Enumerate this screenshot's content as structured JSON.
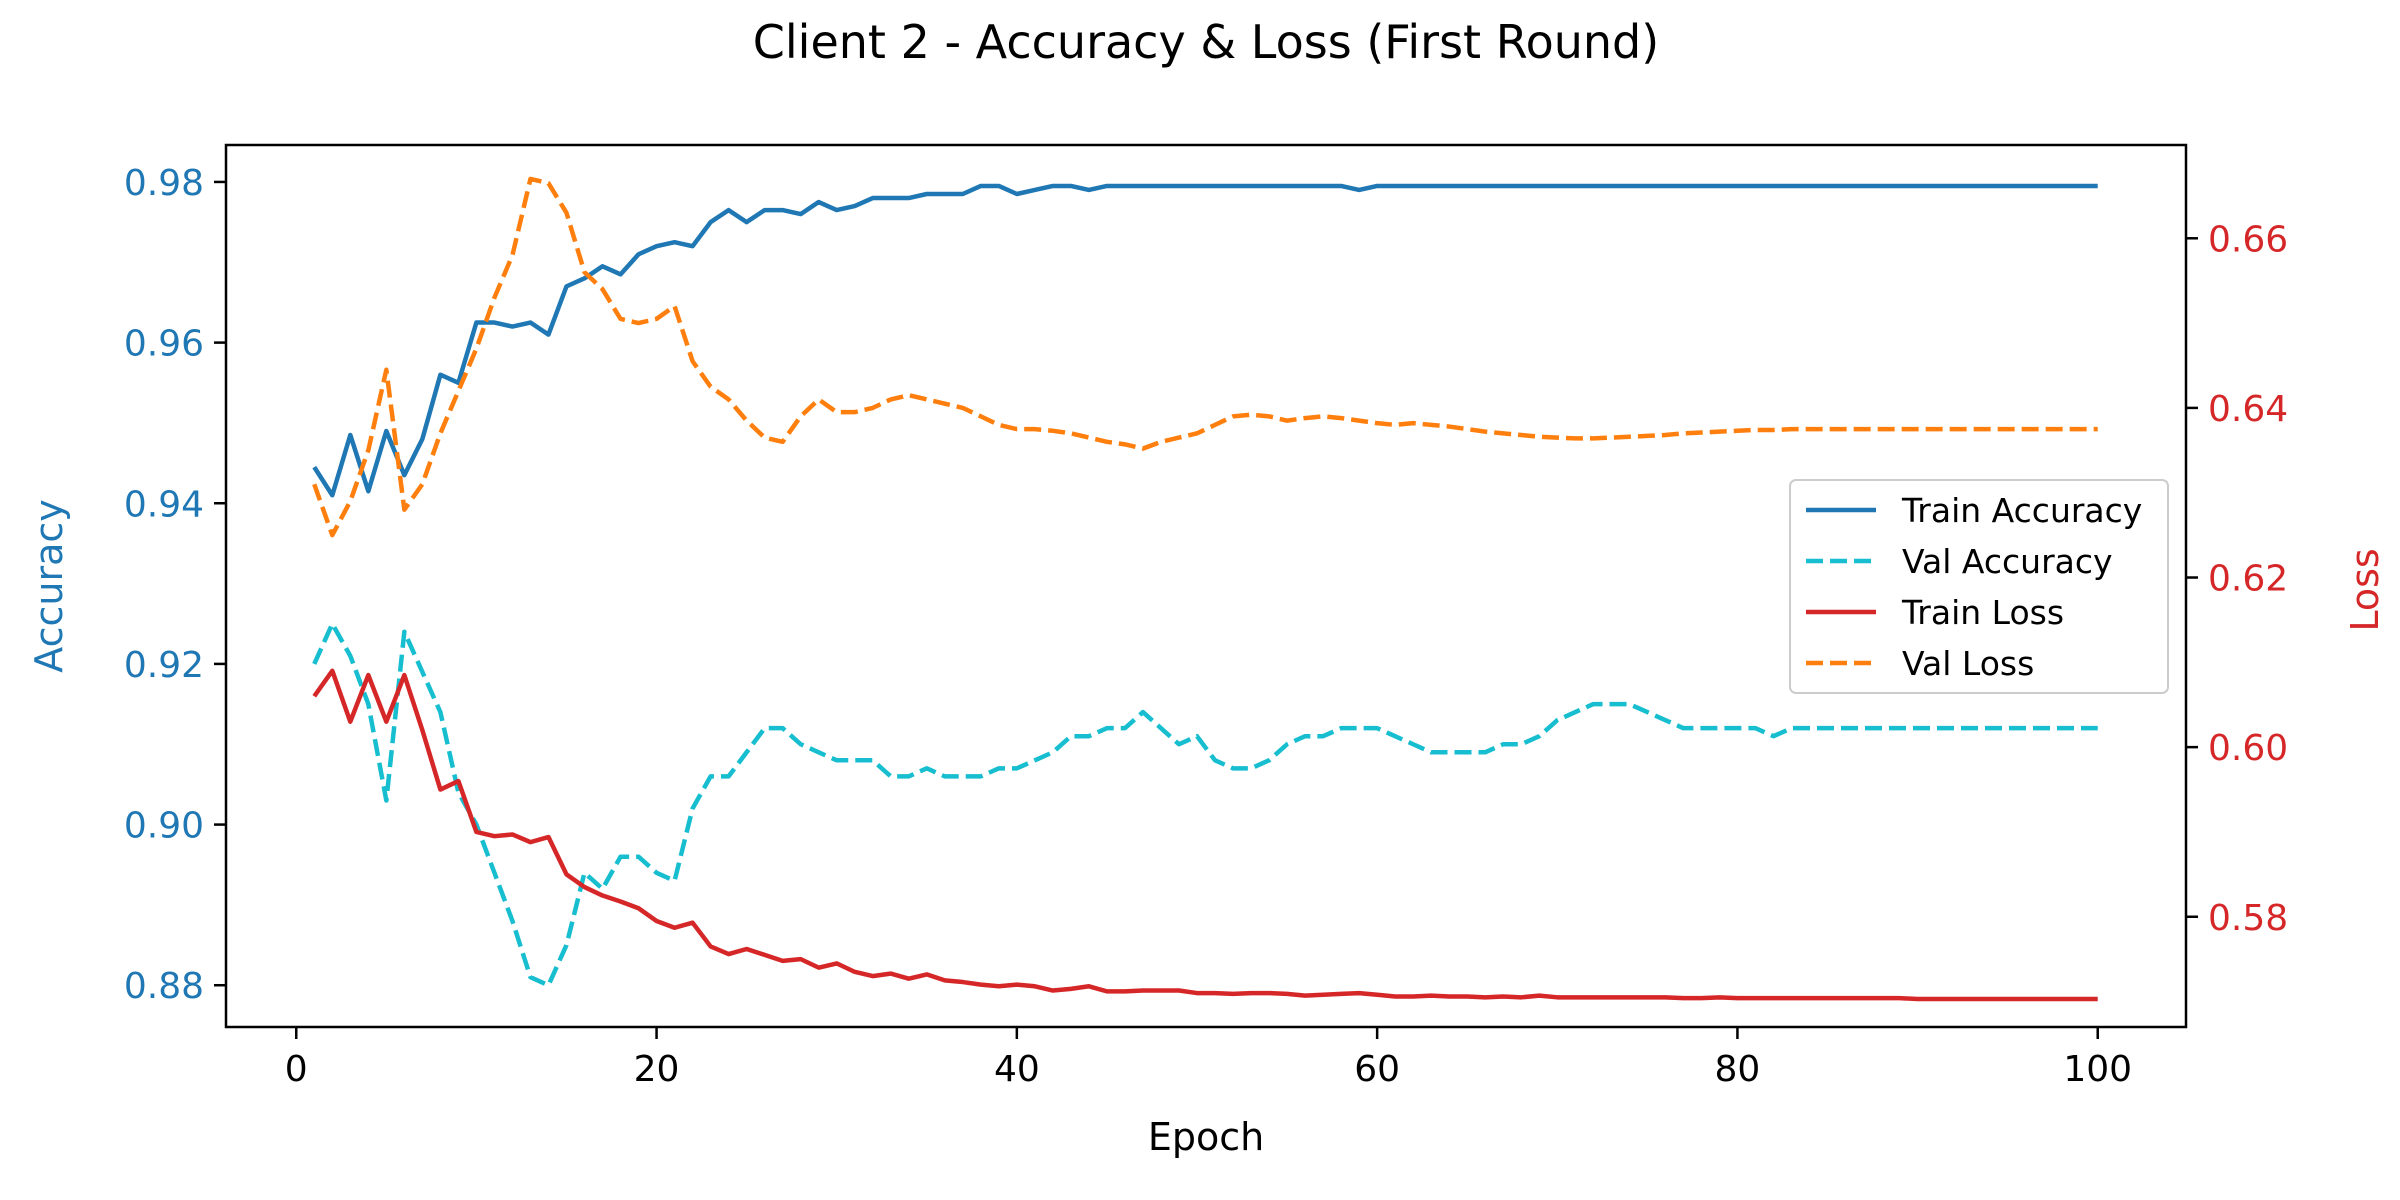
{
  "chart_data": {
    "type": "line",
    "title": "Client 2 - Accuracy & Loss (First Round)",
    "xlabel": "Epoch",
    "ylabel_left": "Accuracy",
    "ylabel_right": "Loss",
    "xlim": [
      -3.9,
      104.9
    ],
    "ylim_left": [
      0.8748,
      0.9846
    ],
    "ylim_right": [
      0.567,
      0.671
    ],
    "xticks": [
      0,
      20,
      40,
      60,
      80,
      100
    ],
    "xtick_labels": [
      "0",
      "20",
      "40",
      "60",
      "80",
      "100"
    ],
    "yticks_left": [
      0.88,
      0.9,
      0.92,
      0.94,
      0.96,
      0.98
    ],
    "ytick_labels_left": [
      "0.88",
      "0.90",
      "0.92",
      "0.94",
      "0.96",
      "0.98"
    ],
    "yticks_right": [
      0.58,
      0.6,
      0.62,
      0.64,
      0.66
    ],
    "ytick_labels_right": [
      "0.58",
      "0.60",
      "0.62",
      "0.64",
      "0.66"
    ],
    "left_color": "#1f77b4",
    "right_color": "#d62728",
    "grid": false,
    "legend_position": "center-right",
    "series": [
      {
        "name": "Train Accuracy",
        "axis": "left",
        "color": "#1f77b4",
        "dash": "solid",
        "values": [
          0.9445,
          0.941,
          0.9485,
          0.9415,
          0.949,
          0.9435,
          0.948,
          0.956,
          0.955,
          0.9625,
          0.9625,
          0.962,
          0.9625,
          0.961,
          0.967,
          0.968,
          0.9695,
          0.9685,
          0.971,
          0.972,
          0.9725,
          0.972,
          0.975,
          0.9765,
          0.975,
          0.9765,
          0.9765,
          0.976,
          0.9775,
          0.9765,
          0.977,
          0.978,
          0.978,
          0.978,
          0.9785,
          0.9785,
          0.9785,
          0.9795,
          0.9795,
          0.9785,
          0.979,
          0.9795,
          0.9795,
          0.979,
          0.9795,
          0.9795,
          0.9795,
          0.9795,
          0.9795,
          0.9795,
          0.9795,
          0.9795,
          0.9795,
          0.9795,
          0.9795,
          0.9795,
          0.9795,
          0.9795,
          0.979,
          0.9795,
          0.9795,
          0.9795,
          0.9795,
          0.9795,
          0.9795,
          0.9795,
          0.9795,
          0.9795,
          0.9795,
          0.9795,
          0.9795,
          0.9795,
          0.9795,
          0.9795,
          0.9795,
          0.9795,
          0.9795,
          0.9795,
          0.9795,
          0.9795,
          0.9795,
          0.9795,
          0.9795,
          0.9795,
          0.9795,
          0.9795,
          0.9795,
          0.9795,
          0.9795,
          0.9795,
          0.9795,
          0.9795,
          0.9795,
          0.9795,
          0.9795,
          0.9795,
          0.9795,
          0.9795,
          0.9795,
          0.9795
        ]
      },
      {
        "name": "Val Accuracy",
        "axis": "left",
        "color": "#17becf",
        "dash": "dashed",
        "values": [
          0.92,
          0.925,
          0.921,
          0.915,
          0.903,
          0.924,
          0.919,
          0.914,
          0.904,
          0.9,
          0.894,
          0.888,
          0.881,
          0.88,
          0.885,
          0.894,
          0.892,
          0.896,
          0.896,
          0.894,
          0.893,
          0.902,
          0.906,
          0.906,
          0.909,
          0.912,
          0.912,
          0.91,
          0.909,
          0.908,
          0.908,
          0.908,
          0.906,
          0.906,
          0.907,
          0.906,
          0.906,
          0.906,
          0.907,
          0.907,
          0.908,
          0.909,
          0.911,
          0.911,
          0.912,
          0.912,
          0.914,
          0.912,
          0.91,
          0.911,
          0.908,
          0.907,
          0.907,
          0.908,
          0.91,
          0.911,
          0.911,
          0.912,
          0.912,
          0.912,
          0.911,
          0.91,
          0.909,
          0.909,
          0.909,
          0.909,
          0.91,
          0.91,
          0.911,
          0.913,
          0.914,
          0.915,
          0.915,
          0.915,
          0.914,
          0.913,
          0.912,
          0.912,
          0.912,
          0.912,
          0.912,
          0.911,
          0.912,
          0.912,
          0.912,
          0.912,
          0.912,
          0.912,
          0.912,
          0.912,
          0.912,
          0.912,
          0.912,
          0.912,
          0.912,
          0.912,
          0.912,
          0.912,
          0.912,
          0.912
        ]
      },
      {
        "name": "Train Loss",
        "axis": "right",
        "color": "#d62728",
        "dash": "solid",
        "values": [
          0.606,
          0.609,
          0.603,
          0.6085,
          0.603,
          0.6085,
          0.602,
          0.595,
          0.596,
          0.59,
          0.5895,
          0.5897,
          0.5888,
          0.5894,
          0.585,
          0.5835,
          0.5825,
          0.5818,
          0.581,
          0.5795,
          0.5787,
          0.5793,
          0.5765,
          0.5756,
          0.5762,
          0.5755,
          0.5748,
          0.575,
          0.574,
          0.5745,
          0.5735,
          0.573,
          0.5733,
          0.5727,
          0.5732,
          0.5725,
          0.5723,
          0.572,
          0.5718,
          0.572,
          0.5718,
          0.5713,
          0.5715,
          0.5718,
          0.5712,
          0.5712,
          0.5713,
          0.5713,
          0.5713,
          0.571,
          0.571,
          0.5709,
          0.571,
          0.571,
          0.5709,
          0.5707,
          0.5708,
          0.5709,
          0.571,
          0.5708,
          0.5706,
          0.5706,
          0.5707,
          0.5706,
          0.5706,
          0.5705,
          0.5706,
          0.5705,
          0.5707,
          0.5705,
          0.5705,
          0.5705,
          0.5705,
          0.5705,
          0.5705,
          0.5705,
          0.5704,
          0.5704,
          0.5705,
          0.5704,
          0.5704,
          0.5704,
          0.5704,
          0.5704,
          0.5704,
          0.5704,
          0.5704,
          0.5704,
          0.5704,
          0.5703,
          0.5703,
          0.5703,
          0.5703,
          0.5703,
          0.5703,
          0.5703,
          0.5703,
          0.5703,
          0.5703,
          0.5703
        ]
      },
      {
        "name": "Val Loss",
        "axis": "right",
        "color": "#ff7f0e",
        "dash": "dashed",
        "values": [
          0.631,
          0.625,
          0.629,
          0.635,
          0.6445,
          0.628,
          0.631,
          0.637,
          0.642,
          0.647,
          0.653,
          0.658,
          0.667,
          0.6665,
          0.663,
          0.656,
          0.654,
          0.6505,
          0.65,
          0.6505,
          0.652,
          0.6455,
          0.6425,
          0.641,
          0.6385,
          0.6365,
          0.636,
          0.639,
          0.641,
          0.6395,
          0.6395,
          0.64,
          0.641,
          0.6415,
          0.641,
          0.6405,
          0.64,
          0.639,
          0.638,
          0.6375,
          0.6375,
          0.6373,
          0.637,
          0.6365,
          0.636,
          0.6357,
          0.6352,
          0.636,
          0.6365,
          0.637,
          0.638,
          0.639,
          0.6392,
          0.639,
          0.6385,
          0.6388,
          0.639,
          0.6388,
          0.6385,
          0.6382,
          0.638,
          0.6382,
          0.638,
          0.6378,
          0.6375,
          0.6372,
          0.637,
          0.6368,
          0.6366,
          0.6365,
          0.6364,
          0.6364,
          0.6365,
          0.6366,
          0.6367,
          0.6368,
          0.637,
          0.6371,
          0.6372,
          0.6373,
          0.6374,
          0.6374,
          0.6375,
          0.6375,
          0.6375,
          0.6375,
          0.6375,
          0.6375,
          0.6375,
          0.6375,
          0.6375,
          0.6375,
          0.6375,
          0.6375,
          0.6375,
          0.6375,
          0.6375,
          0.6375,
          0.6375,
          0.6375
        ]
      }
    ]
  }
}
